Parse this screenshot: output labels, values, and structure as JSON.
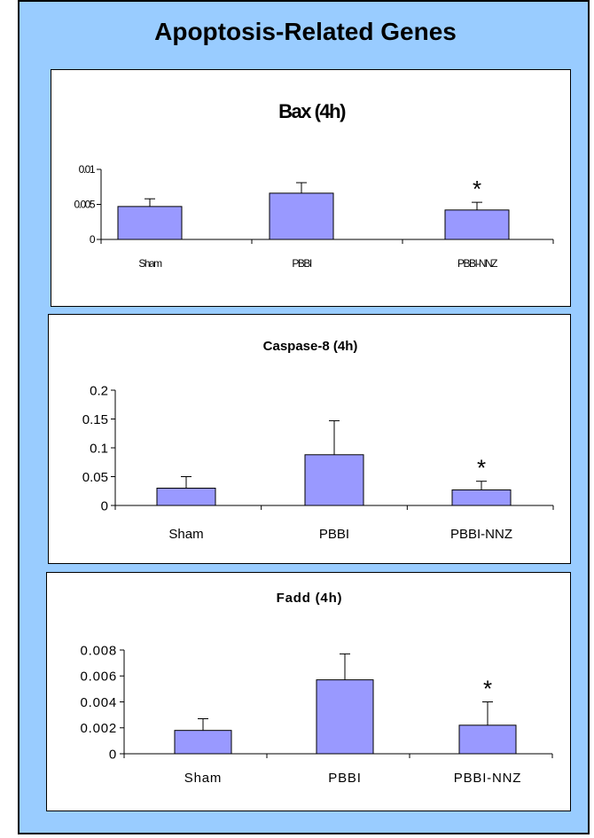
{
  "slide": {
    "title": "Apoptosis-Related Genes",
    "background": "#99ccff"
  },
  "colors": {
    "bar_fill": "#9999ff",
    "stroke": "#000000"
  },
  "chart_data": [
    {
      "type": "bar",
      "title": "Bax (4h)",
      "categories": [
        "Sham",
        "PBBI",
        "PBBI-NNZ"
      ],
      "values": [
        0.0047,
        0.0066,
        0.0042
      ],
      "errors": [
        0.0011,
        0.0015,
        0.0011
      ],
      "ylim": [
        0,
        0.01
      ],
      "yticks": [
        0,
        0.005,
        0.01
      ],
      "ytick_labels": [
        "0",
        "0.005",
        "0.01"
      ],
      "annotations": [
        "",
        "",
        "*"
      ]
    },
    {
      "type": "bar",
      "title": "Caspase-8 (4h)",
      "categories": [
        "Sham",
        "PBBI",
        "PBBI-NNZ"
      ],
      "values": [
        0.03,
        0.088,
        0.027
      ],
      "errors": [
        0.02,
        0.059,
        0.015
      ],
      "ylim": [
        0,
        0.2
      ],
      "yticks": [
        0,
        0.05,
        0.1,
        0.15,
        0.2
      ],
      "ytick_labels": [
        "0",
        "0.05",
        "0.1",
        "0.15",
        "0.2"
      ],
      "annotations": [
        "",
        "",
        "*"
      ]
    },
    {
      "type": "bar",
      "title": "Fadd (4h)",
      "categories": [
        "Sham",
        "PBBI",
        "PBBI-NNZ"
      ],
      "values": [
        0.0018,
        0.0057,
        0.0022
      ],
      "errors": [
        0.0009,
        0.002,
        0.0018
      ],
      "ylim": [
        0,
        0.008
      ],
      "yticks": [
        0,
        0.002,
        0.004,
        0.006,
        0.008
      ],
      "ytick_labels": [
        "0",
        "0.002",
        "0.004",
        "0.006",
        "0.008"
      ],
      "annotations": [
        "",
        "",
        "*"
      ]
    }
  ]
}
